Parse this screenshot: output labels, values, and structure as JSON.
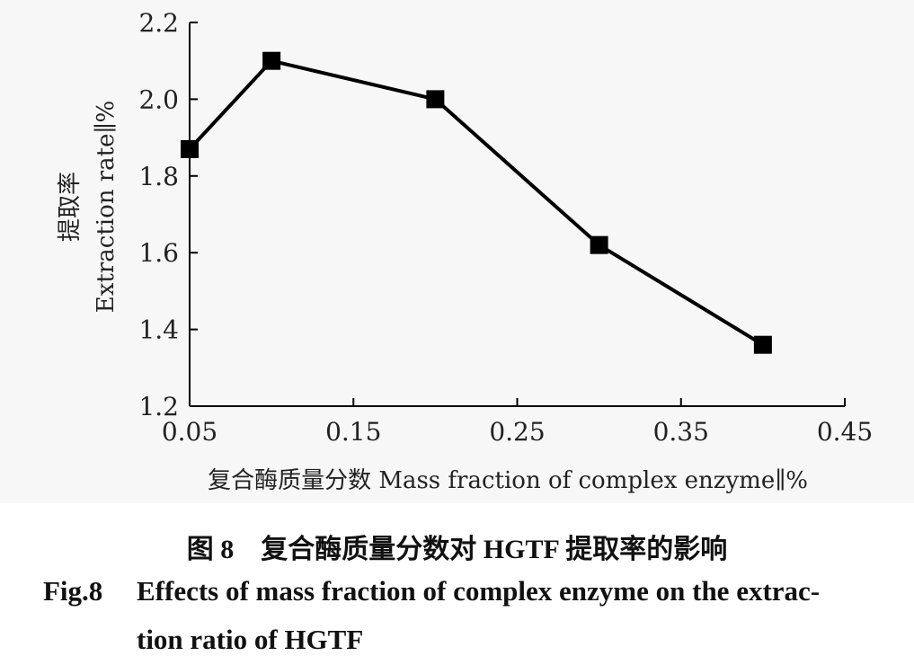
{
  "chart_data": {
    "type": "line",
    "x": [
      0.05,
      0.1,
      0.2,
      0.3,
      0.4
    ],
    "series": [
      {
        "values": [
          1.87,
          2.1,
          2.0,
          1.62,
          1.36
        ]
      }
    ],
    "xlim": [
      0.05,
      0.45
    ],
    "ylim": [
      1.2,
      2.2
    ],
    "xticks": [
      "0.05",
      "0.15",
      "0.25",
      "0.35",
      "0.45"
    ],
    "yticks": [
      "1.2",
      "1.4",
      "1.6",
      "1.8",
      "2.0",
      "2.2"
    ],
    "xlabel": "复合酶质量分数 Mass fraction of complex enzyme∥%",
    "ylabel_cn": "提取率",
    "ylabel_en": "Extraction rate∥%",
    "grid": false,
    "marker": "square",
    "color": "#000000"
  },
  "caption": {
    "cn": "图 8　复合酶质量分数对 HGTF 提取率的影响",
    "en_tag": "Fig.8",
    "en_line1": "Effects of mass fraction of complex enzyme on the extrac-",
    "en_line2": "tion ratio of HGTF"
  }
}
